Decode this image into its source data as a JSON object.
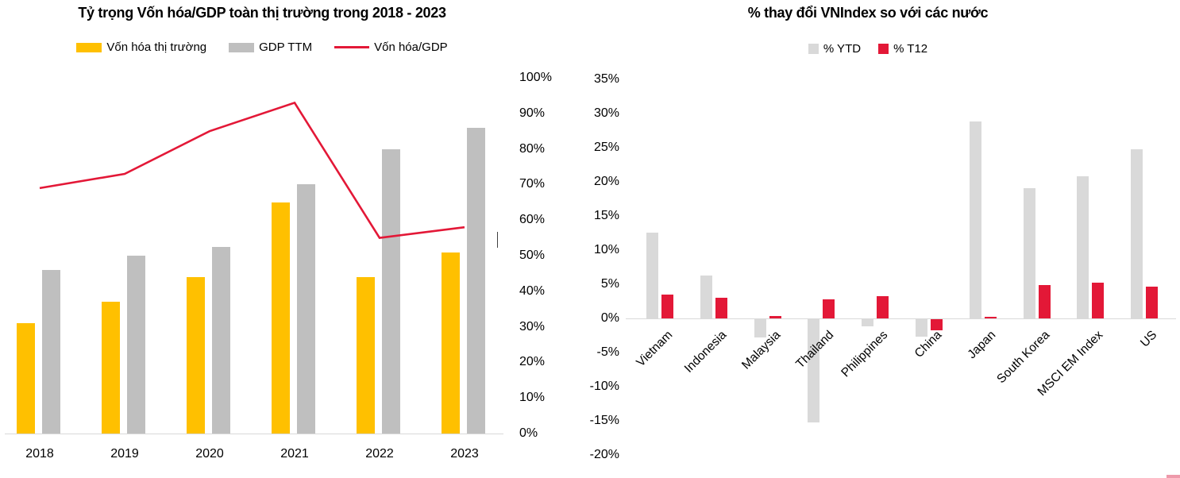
{
  "chart_data": [
    {
      "type": "bar+line",
      "title": "Tỷ trọng Vốn hóa/GDP toàn thị trường trong 2018 - 2023",
      "categories": [
        "2018",
        "2019",
        "2020",
        "2021",
        "2022",
        "2023"
      ],
      "series": [
        {
          "name": "Vốn hóa thị trường",
          "render": "bar",
          "color": "#FFC000",
          "unit": "%",
          "values": [
            31,
            37,
            44,
            65,
            44,
            51
          ]
        },
        {
          "name": "GDP TTM",
          "render": "bar",
          "color": "#BFBFBF",
          "unit": "%",
          "values": [
            46,
            50,
            52.5,
            70,
            80,
            86
          ]
        },
        {
          "name": "Vốn hóa/GDP",
          "render": "line",
          "color": "#E31837",
          "unit": "%",
          "values": [
            69,
            73,
            85,
            93,
            55,
            58
          ]
        }
      ],
      "ylim": [
        0,
        100
      ],
      "y_axis_side": "right",
      "y_ticks": [
        {
          "label": "0%",
          "value": 0
        },
        {
          "label": "10%",
          "value": 10
        },
        {
          "label": "20%",
          "value": 20
        },
        {
          "label": "30%",
          "value": 30
        },
        {
          "label": "40%",
          "value": 40
        },
        {
          "label": "50%",
          "value": 50
        },
        {
          "label": "60%",
          "value": 60
        },
        {
          "label": "70%",
          "value": 70
        },
        {
          "label": "80%",
          "value": 80
        },
        {
          "label": "90%",
          "value": 90
        },
        {
          "label": "100%",
          "value": 100
        }
      ],
      "grid": false,
      "legend_position": "top-center"
    },
    {
      "type": "bar",
      "title": "% thay đổi VNIndex so với các nước",
      "categories": [
        "Vietnam",
        "Indonesia",
        "Malaysia",
        "Thailand",
        "Philippines",
        "China",
        "Japan",
        "South Korea",
        "MSCI EM Index",
        "US"
      ],
      "series": [
        {
          "name": "% YTD",
          "render": "bar",
          "color": "#D9D9D9",
          "unit": "%",
          "values": [
            12.6,
            6.3,
            -2.8,
            -15.2,
            -1.2,
            -2.7,
            28.8,
            19.1,
            20.8,
            24.8
          ]
        },
        {
          "name": "% T12",
          "render": "bar",
          "color": "#E31837",
          "unit": "%",
          "values": [
            3.5,
            3.0,
            0.3,
            2.8,
            3.2,
            -1.7,
            0.2,
            4.9,
            5.2,
            4.6
          ]
        }
      ],
      "ylim": [
        -20,
        35
      ],
      "y_axis_side": "left",
      "x_label_rotation": -45,
      "y_ticks": [
        {
          "label": "35%",
          "value": 35
        },
        {
          "label": "30%",
          "value": 30
        },
        {
          "label": "25%",
          "value": 25
        },
        {
          "label": "20%",
          "value": 20
        },
        {
          "label": "15%",
          "value": 15
        },
        {
          "label": "10%",
          "value": 10
        },
        {
          "label": "5%",
          "value": 5
        },
        {
          "label": "0%",
          "value": 0
        },
        {
          "label": "-5%",
          "value": -5
        },
        {
          "label": "-10%",
          "value": -10
        },
        {
          "label": "-15%",
          "value": -15
        },
        {
          "label": "-20%",
          "value": -20
        }
      ],
      "grid": false,
      "legend_position": "top-center"
    }
  ],
  "artifacts": {
    "stray_tick_color": "#404040",
    "corner_strip_color": "#EE9AAB"
  }
}
